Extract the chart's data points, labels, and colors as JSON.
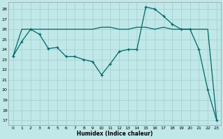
{
  "xlabel": "Humidex (Indice chaleur)",
  "bg_color": "#c0e8e8",
  "grid_color": "#a8d0d0",
  "line_color": "#006666",
  "xlim": [
    -0.5,
    23.5
  ],
  "ylim": [
    16.5,
    28.7
  ],
  "yticks": [
    17,
    18,
    19,
    20,
    21,
    22,
    23,
    24,
    25,
    26,
    27,
    28
  ],
  "xticks": [
    0,
    1,
    2,
    3,
    4,
    5,
    6,
    7,
    8,
    9,
    10,
    11,
    12,
    13,
    14,
    15,
    16,
    17,
    18,
    19,
    20,
    21,
    22,
    23
  ],
  "line1_x": [
    0,
    1,
    2,
    3,
    4,
    5,
    6,
    7,
    8,
    9,
    10,
    11,
    12,
    13,
    14,
    15,
    16,
    17,
    18,
    19,
    20,
    21,
    22,
    23
  ],
  "line1_y": [
    23.3,
    24.8,
    26.0,
    25.5,
    24.1,
    24.2,
    23.3,
    23.3,
    23.0,
    22.8,
    21.5,
    22.6,
    23.8,
    24.0,
    24.0,
    28.2,
    28.0,
    27.3,
    26.5,
    26.0,
    26.0,
    24.0,
    20.0,
    17.0
  ],
  "line2_x": [
    0,
    1,
    2,
    3,
    4,
    5,
    6,
    7,
    8,
    9,
    10,
    11,
    12,
    13,
    14,
    15,
    16,
    17,
    18,
    19,
    20,
    21,
    22,
    23
  ],
  "line2_y": [
    23.3,
    26.0,
    26.0,
    26.0,
    26.0,
    26.0,
    26.0,
    26.0,
    26.0,
    26.0,
    26.2,
    26.2,
    26.0,
    26.0,
    26.2,
    26.2,
    26.0,
    26.2,
    26.0,
    26.0,
    26.0,
    26.0,
    26.0,
    17.0
  ]
}
